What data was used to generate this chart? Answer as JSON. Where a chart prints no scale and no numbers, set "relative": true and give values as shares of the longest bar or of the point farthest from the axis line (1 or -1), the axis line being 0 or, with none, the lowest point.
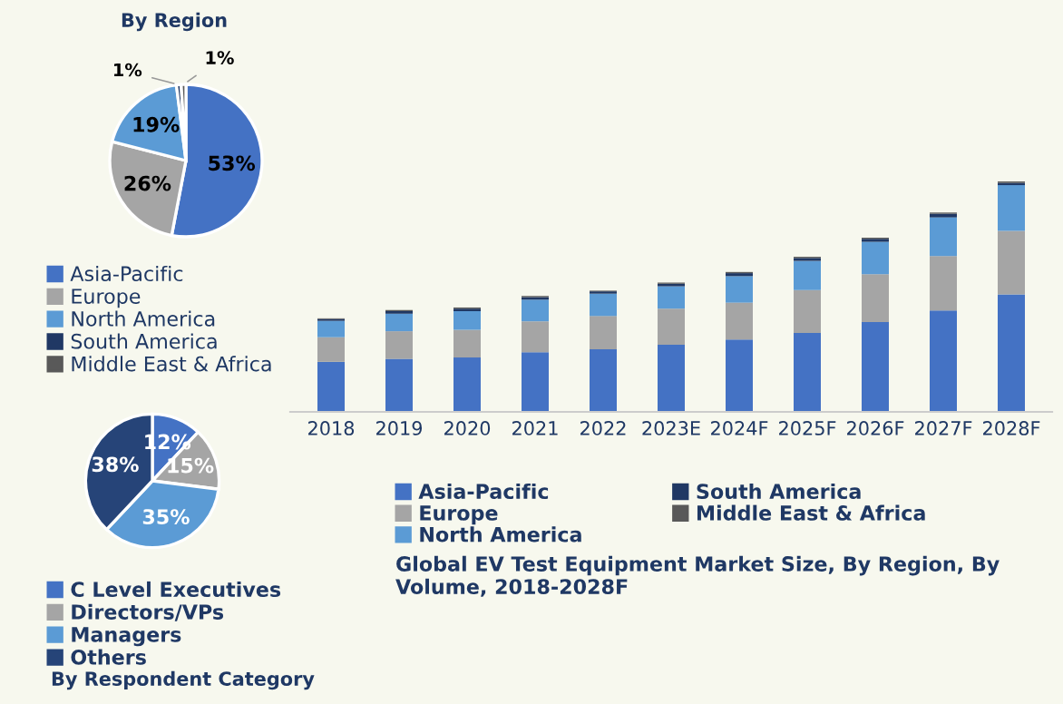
{
  "chart_data": [
    {
      "type": "pie",
      "title": "By Region",
      "categories": [
        "Asia-Pacific",
        "Europe",
        "North America",
        "South America",
        "Middle East & Africa"
      ],
      "values": [
        53,
        26,
        19,
        1,
        1
      ],
      "colors": [
        "#4472c4",
        "#a5a5a5",
        "#5b9bd5",
        "#203864",
        "#595959"
      ],
      "value_labels": [
        "53%",
        "26%",
        "19%",
        "1%",
        "1%"
      ],
      "legend": "bottom"
    },
    {
      "type": "pie",
      "title": "By Respondent Category",
      "categories": [
        "C Level Executives",
        "Directors/VPs",
        "Managers",
        "Others"
      ],
      "values": [
        12,
        15,
        35,
        38
      ],
      "colors": [
        "#4472c4",
        "#a5a5a5",
        "#5b9bd5",
        "#264478"
      ],
      "value_labels": [
        "12%",
        "15%",
        "35%",
        "38%"
      ],
      "legend": "bottom"
    },
    {
      "type": "bar",
      "title": "Global EV Test Equipment Market Size, By Region, By Volume, 2018-2028F",
      "stacked": true,
      "relative": true,
      "legend": "bottom",
      "grid": false,
      "categories": [
        "2018",
        "2019",
        "2020",
        "2021",
        "2022",
        "2023E",
        "2024F",
        "2025F",
        "2026F",
        "2027F",
        "2028F"
      ],
      "series": [
        {
          "name": "Asia-Pacific",
          "color": "#4472c4",
          "values": [
            0.217,
            0.23,
            0.236,
            0.259,
            0.272,
            0.291,
            0.314,
            0.343,
            0.39,
            0.44,
            0.51
          ]
        },
        {
          "name": "Europe",
          "color": "#a5a5a5",
          "values": [
            0.107,
            0.12,
            0.12,
            0.134,
            0.144,
            0.157,
            0.16,
            0.186,
            0.207,
            0.236,
            0.275
          ]
        },
        {
          "name": "North America",
          "color": "#5b9bd5",
          "values": [
            0.071,
            0.076,
            0.081,
            0.094,
            0.097,
            0.097,
            0.115,
            0.126,
            0.141,
            0.168,
            0.199
          ]
        },
        {
          "name": "South America",
          "color": "#203864",
          "values": [
            0.008,
            0.011,
            0.011,
            0.011,
            0.01,
            0.011,
            0.013,
            0.013,
            0.013,
            0.016,
            0.01
          ]
        },
        {
          "name": "Middle East & Africa",
          "color": "#595959",
          "values": [
            0.003,
            0.005,
            0.005,
            0.005,
            0.003,
            0.005,
            0.005,
            0.005,
            0.005,
            0.005,
            0.006
          ]
        }
      ]
    }
  ]
}
